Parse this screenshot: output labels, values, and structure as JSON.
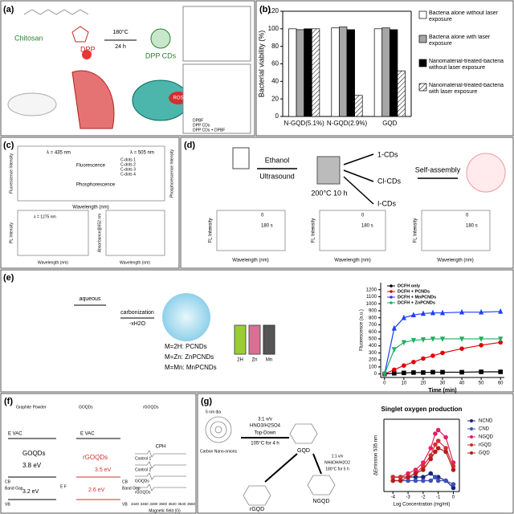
{
  "panels": [
    {
      "label": "(a)",
      "texts": [
        "Chitosan",
        "DPP",
        "180°C",
        "24 h",
        "DPP CDs",
        "ROS",
        "DPBF",
        "DPP CDs",
        "DPP CDs + DPBF"
      ]
    },
    {
      "label": "(b)"
    },
    {
      "label": "(c)",
      "texts": [
        "λ = 435 nm",
        "λ = 505 nm",
        "Fluorescence",
        "Phosphorescence",
        "Wavelength (nm)",
        "C-dots 1",
        "C-dots 2",
        "C-dots 3",
        "C-dots 4",
        "λ = 1275 nm",
        "PL Intensity",
        "Absorbance@652 nm",
        "Fluorescence Intensity",
        "Phosphorescence Intensity"
      ]
    },
    {
      "label": "(d)",
      "texts": [
        "Ethanol",
        "Ultrasound",
        "200°C 10 h",
        "1-CDs",
        "Cl-CDs",
        "I-CDs",
        "Self-assembly",
        "FL Intensity",
        "Wavelength (nm)",
        "180 s",
        "0"
      ]
    },
    {
      "label": "(e)",
      "texts": [
        "aqueous",
        "carbonization",
        "-xH2O",
        "M=2H: PCNDs",
        "M=Zn: ZnPCNDs",
        "M=Mn: MnPCNDs",
        "2H",
        "Zn",
        "Mn"
      ]
    },
    {
      "label": "(f)",
      "texts": [
        "Graphite Powder",
        "GOQDs",
        "rGOQDs",
        "3.8 eV",
        "3.5 eV",
        "2.6 eV",
        "3.2 eV",
        "E VAC",
        "CB",
        "Band Gap",
        "VB",
        "E F",
        "CPH",
        "Control 1",
        "Control 2",
        "Magnetic field (G)"
      ],
      "field_ticks": [
        3440,
        3460,
        3480,
        3500,
        3520,
        3540,
        3560
      ]
    },
    {
      "label": "(g)",
      "texts": [
        "5 nm dia",
        "Carbon Nano-onions",
        "3:1 v/v",
        "HNO3/H2SO4",
        "Top-Down",
        "105°C for 4 h",
        "GQD",
        "1:1 v/v",
        "NH4OH/H2O2",
        "180°C for 5 h",
        "rGQD",
        "NGQD"
      ]
    }
  ],
  "chart_data": [
    {
      "type": "bar",
      "ylabel": "Bacterial viability (%)",
      "categories": [
        "N-GQD(5.1%)",
        "N-GQD(2.9%)",
        "GQD"
      ],
      "series": [
        {
          "name": "Bacteria alone without laser exposure",
          "color": "#ffffff",
          "values": [
            100,
            101,
            100
          ]
        },
        {
          "name": "Bacteria alone with laser exposure",
          "color": "#a6a6a6",
          "values": [
            99,
            102,
            101
          ]
        },
        {
          "name": "Nanomaterial-treated-bacteria without laser exposure",
          "color": "#000000",
          "values": [
            100,
            99,
            99
          ]
        },
        {
          "name": "Nanomaterial-treated-bacteria with laser exposure",
          "color": "#ffffff",
          "hatch": true,
          "values": [
            100,
            24,
            52
          ]
        }
      ],
      "ylim": [
        0,
        120
      ],
      "yticks": [
        0,
        20,
        40,
        60,
        80,
        100,
        120
      ],
      "legend": "right"
    },
    {
      "type": "line",
      "xlabel": "Time (min)",
      "ylabel": "Fluorescence (a.u.)",
      "x": [
        0,
        5,
        10,
        15,
        20,
        25,
        30,
        40,
        50,
        60
      ],
      "series": [
        {
          "name": "DCFH only",
          "color": "#000000",
          "marker": "square",
          "values": [
            0,
            10,
            15,
            20,
            20,
            25,
            25,
            25,
            30,
            30
          ]
        },
        {
          "name": "DCFH + PCNDs",
          "color": "#e00000",
          "marker": "circle",
          "values": [
            0,
            60,
            120,
            170,
            220,
            260,
            300,
            360,
            410,
            450
          ]
        },
        {
          "name": "DCFH + MnPCNDs",
          "color": "#1f3fff",
          "marker": "triangle",
          "values": [
            0,
            650,
            800,
            840,
            860,
            870,
            870,
            880,
            880,
            890
          ]
        },
        {
          "name": "DCFH + ZnPCNDs",
          "color": "#20b060",
          "marker": "triangle-down",
          "values": [
            0,
            350,
            450,
            480,
            490,
            500,
            500,
            500,
            500,
            500
          ]
        }
      ],
      "xlim": [
        -2,
        62
      ],
      "xticks": [
        0,
        10,
        20,
        30,
        40,
        50,
        60
      ],
      "ylim": [
        -50,
        1300
      ],
      "yticks": [
        0,
        100,
        200,
        300,
        400,
        500,
        600,
        700,
        800,
        900,
        1000,
        1100,
        1200
      ],
      "legend": "upper left"
    },
    {
      "type": "line",
      "title": "Singlet oxygen production",
      "xlabel": "Log Concentration (mg/ml)",
      "ylabel": "ΔEmission 535 nm",
      "x": [
        -4,
        -3.5,
        -3,
        -2.5,
        -2,
        -1.5,
        -1.2,
        -1,
        -0.5,
        0
      ],
      "series": [
        {
          "name": "NCND",
          "color": "#1a237e",
          "marker": "circle",
          "values": [
            4,
            4,
            4,
            4,
            4,
            5,
            4,
            4,
            3,
            1
          ]
        },
        {
          "name": "CND",
          "color": "#3f51b5",
          "marker": "circle",
          "values": [
            3,
            3,
            3,
            3,
            3,
            3,
            4,
            3,
            3,
            2
          ]
        },
        {
          "name": "NGQD",
          "color": "#e91e63",
          "marker": "circle",
          "values": [
            4,
            4,
            5,
            6,
            8,
            12,
            16,
            17,
            15,
            8
          ]
        },
        {
          "name": "rGQD",
          "color": "#d32f2f",
          "marker": "circle",
          "values": [
            4,
            4,
            4,
            5,
            7,
            10,
            13,
            14,
            12,
            7
          ]
        },
        {
          "name": "GQD",
          "color": "#b71c1c",
          "marker": "circle",
          "values": [
            3,
            3,
            4,
            5,
            6,
            9,
            11,
            12,
            11,
            6
          ]
        }
      ],
      "xlim": [
        -4.6,
        0.4
      ],
      "xticks": [
        -4,
        -3,
        -2,
        -1,
        0
      ],
      "ylim": [
        0,
        20
      ],
      "legend": "right"
    }
  ]
}
